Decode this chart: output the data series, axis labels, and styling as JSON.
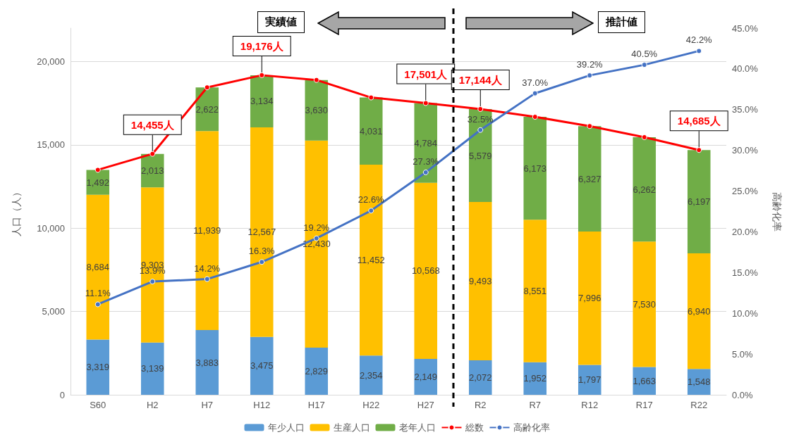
{
  "chart_data": {
    "type": "bar",
    "stacked": true,
    "categories": [
      "S60",
      "H2",
      "H7",
      "H12",
      "H17",
      "H22",
      "H27",
      "R2",
      "R7",
      "R12",
      "R17",
      "R22"
    ],
    "series": [
      {
        "name": "年少人口",
        "color": "#5b9bd5",
        "values": [
          3319,
          3139,
          3883,
          3475,
          2829,
          2354,
          2149,
          2072,
          1952,
          1797,
          1663,
          1548
        ],
        "value_labels": [
          "3,319",
          "3,139",
          "3,883",
          "3,475",
          "2,829",
          "2,354",
          "2,149",
          "2,072",
          "1,952",
          "1,797",
          "1,663",
          "1,548"
        ]
      },
      {
        "name": "生産人口",
        "color": "#ffc000",
        "values": [
          8684,
          9303,
          11939,
          12567,
          12430,
          11452,
          10568,
          9493,
          8551,
          7996,
          7530,
          6940
        ],
        "value_labels": [
          "8,684",
          "9,303",
          "11,939",
          "12,567",
          "12,430",
          "11,452",
          "10,568",
          "9,493",
          "8,551",
          "7,996",
          "7,530",
          "6,940"
        ]
      },
      {
        "name": "老年人口",
        "color": "#70ad47",
        "values": [
          1492,
          2013,
          2622,
          3134,
          3630,
          4031,
          4784,
          5579,
          6173,
          6327,
          6262,
          6197
        ],
        "value_labels": [
          "1,492",
          "2,013",
          "2,622",
          "3,134",
          "3,630",
          "4,031",
          "4,784",
          "5,579",
          "6,173",
          "6,327",
          "6,262",
          "6,197"
        ]
      },
      {
        "name": "総数",
        "type": "line",
        "color": "#ff0000",
        "values": [
          13495,
          14455,
          18444,
          19176,
          18889,
          17837,
          17501,
          17144,
          16676,
          16120,
          15455,
          14685
        ],
        "value_labels": [
          null,
          "14,455人",
          null,
          "19,176人",
          null,
          null,
          "17,501人",
          "17,144人",
          null,
          null,
          null,
          "14,685人"
        ]
      },
      {
        "name": "高齢化率",
        "type": "line",
        "axis": "y2",
        "color": "#4472c4",
        "values": [
          11.1,
          13.9,
          14.2,
          16.3,
          19.2,
          22.6,
          27.3,
          32.5,
          37.0,
          39.2,
          40.5,
          42.2
        ],
        "value_labels": [
          "11.1%",
          "13.9%",
          "14.2%",
          "16.3%",
          "19.2%",
          "22.6%",
          "27.3%",
          "32.5%",
          "37.0%",
          "39.2%",
          "40.5%",
          "42.2%"
        ]
      }
    ],
    "ylabel": "人口（人）",
    "y2label": "高齢化率",
    "ylim": [
      0,
      22000
    ],
    "yticks": [
      0,
      {
        "value": 5000,
        "label": "5,000"
      },
      {
        "value": 10000,
        "label": "10,000"
      },
      {
        "value": 15000,
        "label": "15,000"
      },
      {
        "value": 20000,
        "label": "20,000"
      }
    ],
    "y2lim": [
      0,
      45
    ],
    "y2ticks": [
      {
        "value": 0,
        "label": "0.0%"
      },
      {
        "value": 5,
        "label": "5.0%"
      },
      {
        "value": 10,
        "label": "10.0%"
      },
      {
        "value": 15,
        "label": "15.0%"
      },
      {
        "value": 20,
        "label": "20.0%"
      },
      {
        "value": 25,
        "label": "25.0%"
      },
      {
        "value": 30,
        "label": "30.0%"
      },
      {
        "value": 35,
        "label": "35.0%"
      },
      {
        "value": 40,
        "label": "40.0%"
      },
      {
        "value": 45,
        "label": "45.0%"
      }
    ],
    "annotations": [
      "実績値",
      "推計値"
    ],
    "grid": "y",
    "legend": "bottom",
    "marker": "circle",
    "line_style": "solid"
  }
}
